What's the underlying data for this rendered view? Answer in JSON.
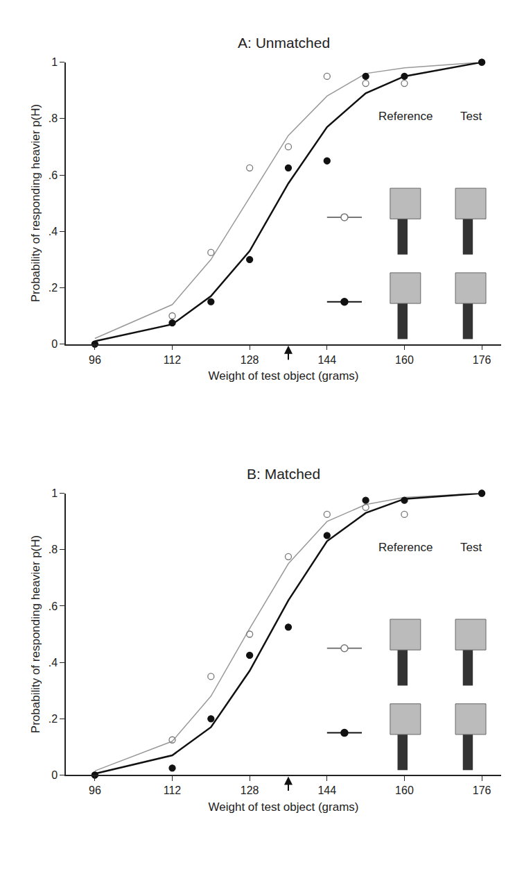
{
  "chart_data": [
    {
      "type": "scatter",
      "title": "A: Unmatched",
      "x_label": "Weight of test object (grams)",
      "y_label": "Probability of responding heavier p(H)",
      "x": [
        96,
        112,
        120,
        128,
        136,
        144,
        152,
        160,
        176
      ],
      "xlim": [
        90,
        180
      ],
      "xticks": [
        96,
        112,
        128,
        144,
        160,
        176
      ],
      "ylim": [
        0,
        1
      ],
      "yticks": [
        0,
        {
          "value": 0.2,
          "label": ".2"
        },
        {
          "value": 0.4,
          "label": ".4"
        },
        {
          "value": 0.6,
          "label": ".6"
        },
        {
          "value": 0.8,
          "label": ".8"
        },
        1
      ],
      "reference_weight": 136,
      "annotations": [
        "Reference",
        "Test"
      ],
      "series": [
        {
          "type": "scatter",
          "marker": "circle-open",
          "color": "#777777",
          "values": [
            0,
            0.1,
            0.325,
            0.625,
            0.7,
            0.95,
            0.925,
            0.925,
            1
          ]
        },
        {
          "type": "scatter",
          "marker": "circle",
          "color": "#111111",
          "values": [
            0,
            0.075,
            0.15,
            0.3,
            0.625,
            0.65,
            0.95,
            0.95,
            1
          ]
        },
        {
          "type": "line",
          "color": "#999999",
          "values": [
            0.02,
            0.14,
            0.3,
            0.52,
            0.74,
            0.88,
            0.96,
            0.98,
            1
          ]
        },
        {
          "type": "line",
          "color": "#111111",
          "values": [
            0.01,
            0.07,
            0.17,
            0.33,
            0.57,
            0.77,
            0.89,
            0.95,
            1
          ]
        }
      ]
    },
    {
      "type": "scatter",
      "title": "B: Matched",
      "x_label": "Weight of test object (grams)",
      "y_label": "Probability of responding heavier p(H)",
      "x": [
        96,
        112,
        120,
        128,
        136,
        144,
        152,
        160,
        176
      ],
      "xlim": [
        90,
        180
      ],
      "xticks": [
        96,
        112,
        128,
        144,
        160,
        176
      ],
      "ylim": [
        0,
        1
      ],
      "yticks": [
        0,
        {
          "value": 0.2,
          "label": ".2"
        },
        {
          "value": 0.4,
          "label": ".4"
        },
        {
          "value": 0.6,
          "label": ".6"
        },
        {
          "value": 0.8,
          "label": ".8"
        },
        1
      ],
      "reference_weight": 136,
      "annotations": [
        "Reference",
        "Test"
      ],
      "series": [
        {
          "type": "scatter",
          "marker": "circle-open",
          "color": "#777777",
          "values": [
            0,
            0.125,
            0.35,
            0.5,
            0.775,
            0.925,
            0.95,
            0.925,
            1
          ]
        },
        {
          "type": "scatter",
          "marker": "circle",
          "color": "#111111",
          "values": [
            0,
            0.025,
            0.2,
            0.425,
            0.525,
            0.85,
            0.975,
            0.975,
            1
          ]
        },
        {
          "type": "line",
          "color": "#999999",
          "values": [
            0.015,
            0.12,
            0.28,
            0.52,
            0.75,
            0.9,
            0.96,
            0.985,
            1
          ]
        },
        {
          "type": "line",
          "color": "#111111",
          "values": [
            0.005,
            0.07,
            0.17,
            0.37,
            0.62,
            0.83,
            0.93,
            0.98,
            1
          ]
        }
      ]
    }
  ]
}
